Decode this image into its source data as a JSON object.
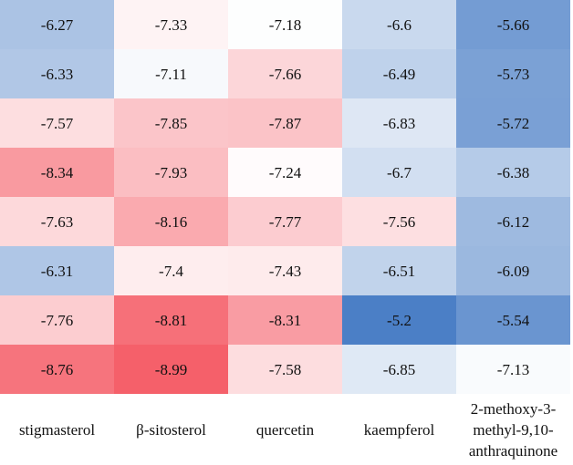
{
  "chart_data": {
    "type": "heatmap",
    "title": "",
    "xlabel": "",
    "ylabel": "",
    "columns": [
      "stigmasterol",
      "β-sitosterol",
      "quercetin",
      "kaempferol",
      "2-methoxy-3-methyl-9,10-anthraquinone"
    ],
    "column_label_lines": [
      [
        "stigmasterol"
      ],
      [
        "β-sitosterol"
      ],
      [
        "quercetin"
      ],
      [
        "kaempferol"
      ],
      [
        "2-methoxy-3-",
        "methyl-9,10-",
        "anthraquinone"
      ]
    ],
    "rows": [
      [
        "-6.27",
        "-7.33",
        "-7.18",
        "-6.6",
        "-5.66"
      ],
      [
        "-6.33",
        "-7.11",
        "-7.66",
        "-6.49",
        "-5.73"
      ],
      [
        "-7.57",
        "-7.85",
        "-7.87",
        "-6.83",
        "-5.72"
      ],
      [
        "-8.34",
        "-7.93",
        "-7.24",
        "-6.7",
        "-6.38"
      ],
      [
        "-7.63",
        "-8.16",
        "-7.77",
        "-7.56",
        "-6.12"
      ],
      [
        "-6.31",
        "-7.4",
        "-7.43",
        "-6.51",
        "-6.09"
      ],
      [
        "-7.76",
        "-8.81",
        "-8.31",
        "-5.2",
        "-5.54"
      ],
      [
        "-8.76",
        "-8.99",
        "-7.58",
        "-6.85",
        "-7.13"
      ]
    ],
    "color_scale": {
      "min": -8.99,
      "mid": -7.2,
      "max": -5.2,
      "low_color": "#f5606a",
      "mid_color": "#ffffff",
      "high_color": "#4b7fc6"
    }
  }
}
